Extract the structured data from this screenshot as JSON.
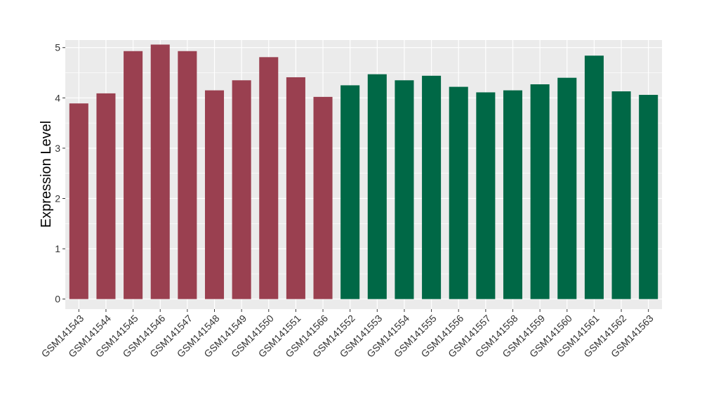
{
  "chart_data": {
    "type": "bar",
    "title": "",
    "xlabel": "",
    "ylabel": "Expression Level",
    "ylim": [
      -0.2,
      5.15
    ],
    "yticks": [
      0,
      1,
      2,
      3,
      4,
      5
    ],
    "grid": true,
    "legend": "none",
    "colors": {
      "panel_background": "#EBEBEB",
      "gridline": "#FFFFFF",
      "group_a": "#9A4050",
      "group_b": "#006846",
      "axis_text": "#333333",
      "axis_title": "#000000"
    },
    "categories": [
      "GSM141543",
      "GSM141544",
      "GSM141545",
      "GSM141546",
      "GSM141547",
      "GSM141548",
      "GSM141549",
      "GSM141550",
      "GSM141551",
      "GSM141566",
      "GSM141552",
      "GSM141553",
      "GSM141554",
      "GSM141555",
      "GSM141556",
      "GSM141557",
      "GSM141558",
      "GSM141559",
      "GSM141560",
      "GSM141561",
      "GSM141562",
      "GSM141563"
    ],
    "values": [
      3.89,
      4.09,
      4.93,
      5.06,
      4.93,
      4.15,
      4.35,
      4.81,
      4.41,
      4.02,
      4.25,
      4.47,
      4.35,
      4.44,
      4.22,
      4.11,
      4.15,
      4.27,
      4.4,
      4.84,
      4.13,
      4.06
    ],
    "bar_groups": [
      "a",
      "a",
      "a",
      "a",
      "a",
      "a",
      "a",
      "a",
      "a",
      "a",
      "b",
      "b",
      "b",
      "b",
      "b",
      "b",
      "b",
      "b",
      "b",
      "b",
      "b",
      "b"
    ]
  }
}
